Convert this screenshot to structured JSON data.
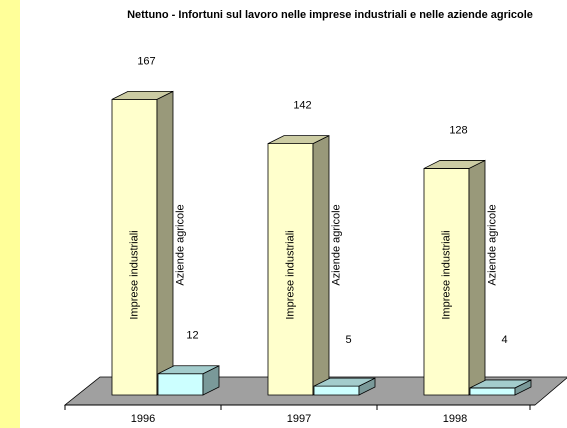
{
  "chart_data": {
    "type": "bar3d",
    "title": "Nettuno - Infortuni sul lavoro nelle imprese industriali e nelle aziende agricole",
    "categories": [
      "1996",
      "1997",
      "1998"
    ],
    "series": [
      {
        "name": "Imprese industriali",
        "color": "#ffffcc",
        "values": [
          167,
          142,
          128
        ]
      },
      {
        "name": "Aziende agricole",
        "color": "#ccffff",
        "values": [
          12,
          5,
          4
        ]
      }
    ]
  }
}
